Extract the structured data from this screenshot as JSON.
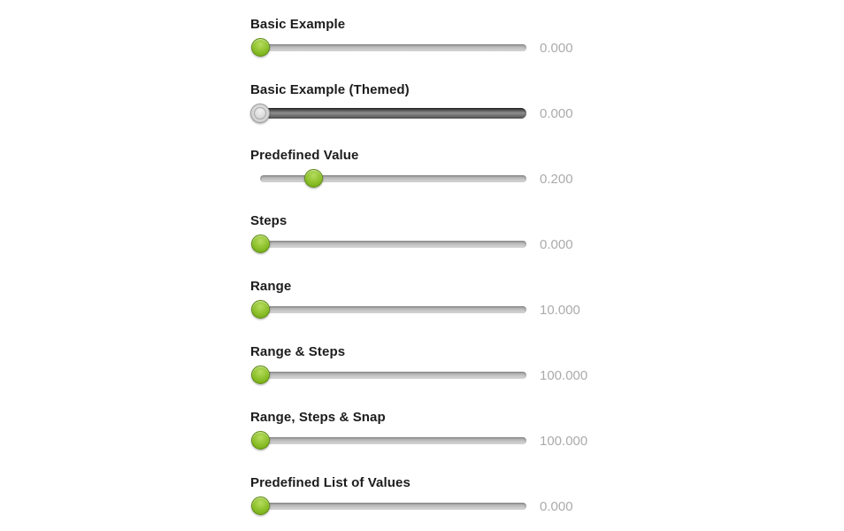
{
  "page": {
    "background_color": "#ffffff"
  },
  "colors": {
    "label_text": "#1c1c1c",
    "value_text": "#ababab",
    "handle_green": "#8cc02a",
    "handle_green_border": "#5d8c0f",
    "handle_themed_silver": "#d2d2d2",
    "track_gray": "#c0c0c0",
    "track_themed_dark": "#4e4e4e"
  },
  "sliders": [
    {
      "label": "Basic Example",
      "value": "0.000",
      "handle_percent": 0,
      "themed": false
    },
    {
      "label": "Basic Example (Themed)",
      "value": "0.000",
      "handle_percent": 0,
      "themed": true
    },
    {
      "label": "Predefined Value",
      "value": "0.200",
      "handle_percent": 20,
      "themed": false
    },
    {
      "label": "Steps",
      "value": "0.000",
      "handle_percent": 0,
      "themed": false
    },
    {
      "label": "Range",
      "value": "10.000",
      "handle_percent": 0,
      "themed": false
    },
    {
      "label": "Range & Steps",
      "value": "100.000",
      "handle_percent": 0,
      "themed": false
    },
    {
      "label": "Range, Steps & Snap",
      "value": "100.000",
      "handle_percent": 0,
      "themed": false
    },
    {
      "label": "Predefined List of Values",
      "value": "0.000",
      "handle_percent": 0,
      "themed": false
    }
  ]
}
